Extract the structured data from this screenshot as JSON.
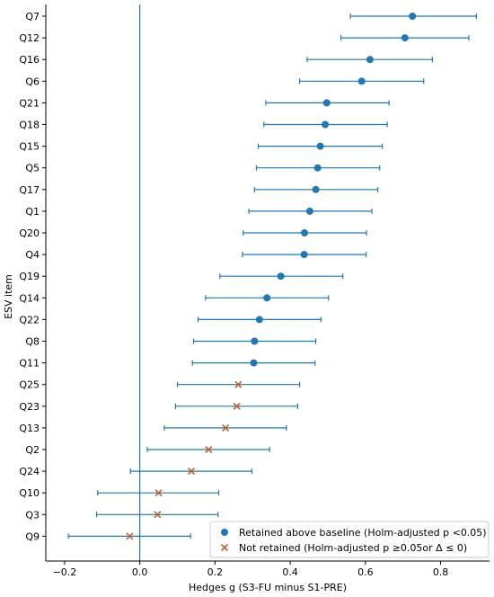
{
  "chart_data": {
    "type": "scatter",
    "subtype": "forest-plot",
    "title": "",
    "xlabel": "Hedges g (S3-FU minus S1-PRE)",
    "ylabel": "ESV item",
    "xlim": [
      -0.25,
      0.93
    ],
    "xticks": [
      -0.2,
      0.0,
      0.2,
      0.4,
      0.6,
      0.8
    ],
    "xtick_labels": [
      "−0.2",
      "0.0",
      "0.2",
      "0.4",
      "0.6",
      "0.8"
    ],
    "reference_line_x": 0,
    "grid": false,
    "legend_position": "bottom-right",
    "colors": {
      "retained": "#1f77b4",
      "not_retained": "#c0602b",
      "errorbar": "#1f77b4",
      "refline": "#1f77b4"
    },
    "series": [
      {
        "name": "Retained above baseline (Holm-adjusted p <0.05)",
        "marker": "circle",
        "color": "#1f77b4"
      },
      {
        "name": "Not retained (Holm-adjusted p ≥0.05or Δ ≤ 0)",
        "marker": "x",
        "color": "#c0602b"
      }
    ],
    "items": [
      {
        "label": "Q7",
        "g": 0.725,
        "lo": 0.56,
        "hi": 0.895,
        "retained": true
      },
      {
        "label": "Q12",
        "g": 0.705,
        "lo": 0.535,
        "hi": 0.875,
        "retained": true
      },
      {
        "label": "Q16",
        "g": 0.612,
        "lo": 0.445,
        "hi": 0.778,
        "retained": true
      },
      {
        "label": "Q6",
        "g": 0.59,
        "lo": 0.425,
        "hi": 0.755,
        "retained": true
      },
      {
        "label": "Q21",
        "g": 0.497,
        "lo": 0.335,
        "hi": 0.663,
        "retained": true
      },
      {
        "label": "Q18",
        "g": 0.493,
        "lo": 0.33,
        "hi": 0.658,
        "retained": true
      },
      {
        "label": "Q15",
        "g": 0.48,
        "lo": 0.315,
        "hi": 0.645,
        "retained": true
      },
      {
        "label": "Q5",
        "g": 0.473,
        "lo": 0.31,
        "hi": 0.638,
        "retained": true
      },
      {
        "label": "Q17",
        "g": 0.468,
        "lo": 0.305,
        "hi": 0.633,
        "retained": true
      },
      {
        "label": "Q1",
        "g": 0.452,
        "lo": 0.29,
        "hi": 0.617,
        "retained": true
      },
      {
        "label": "Q20",
        "g": 0.438,
        "lo": 0.275,
        "hi": 0.603,
        "retained": true
      },
      {
        "label": "Q4",
        "g": 0.437,
        "lo": 0.273,
        "hi": 0.602,
        "retained": true
      },
      {
        "label": "Q19",
        "g": 0.375,
        "lo": 0.213,
        "hi": 0.54,
        "retained": true
      },
      {
        "label": "Q14",
        "g": 0.338,
        "lo": 0.175,
        "hi": 0.502,
        "retained": true
      },
      {
        "label": "Q22",
        "g": 0.318,
        "lo": 0.155,
        "hi": 0.482,
        "retained": true
      },
      {
        "label": "Q8",
        "g": 0.305,
        "lo": 0.143,
        "hi": 0.468,
        "retained": true
      },
      {
        "label": "Q11",
        "g": 0.303,
        "lo": 0.14,
        "hi": 0.466,
        "retained": true
      },
      {
        "label": "Q25",
        "g": 0.262,
        "lo": 0.1,
        "hi": 0.425,
        "retained": false
      },
      {
        "label": "Q23",
        "g": 0.258,
        "lo": 0.095,
        "hi": 0.42,
        "retained": false
      },
      {
        "label": "Q13",
        "g": 0.228,
        "lo": 0.065,
        "hi": 0.39,
        "retained": false
      },
      {
        "label": "Q2",
        "g": 0.183,
        "lo": 0.02,
        "hi": 0.345,
        "retained": false
      },
      {
        "label": "Q24",
        "g": 0.137,
        "lo": -0.025,
        "hi": 0.298,
        "retained": false
      },
      {
        "label": "Q10",
        "g": 0.05,
        "lo": -0.112,
        "hi": 0.21,
        "retained": false
      },
      {
        "label": "Q3",
        "g": 0.047,
        "lo": -0.115,
        "hi": 0.208,
        "retained": false
      },
      {
        "label": "Q9",
        "g": -0.027,
        "lo": -0.19,
        "hi": 0.135,
        "retained": false
      }
    ]
  }
}
